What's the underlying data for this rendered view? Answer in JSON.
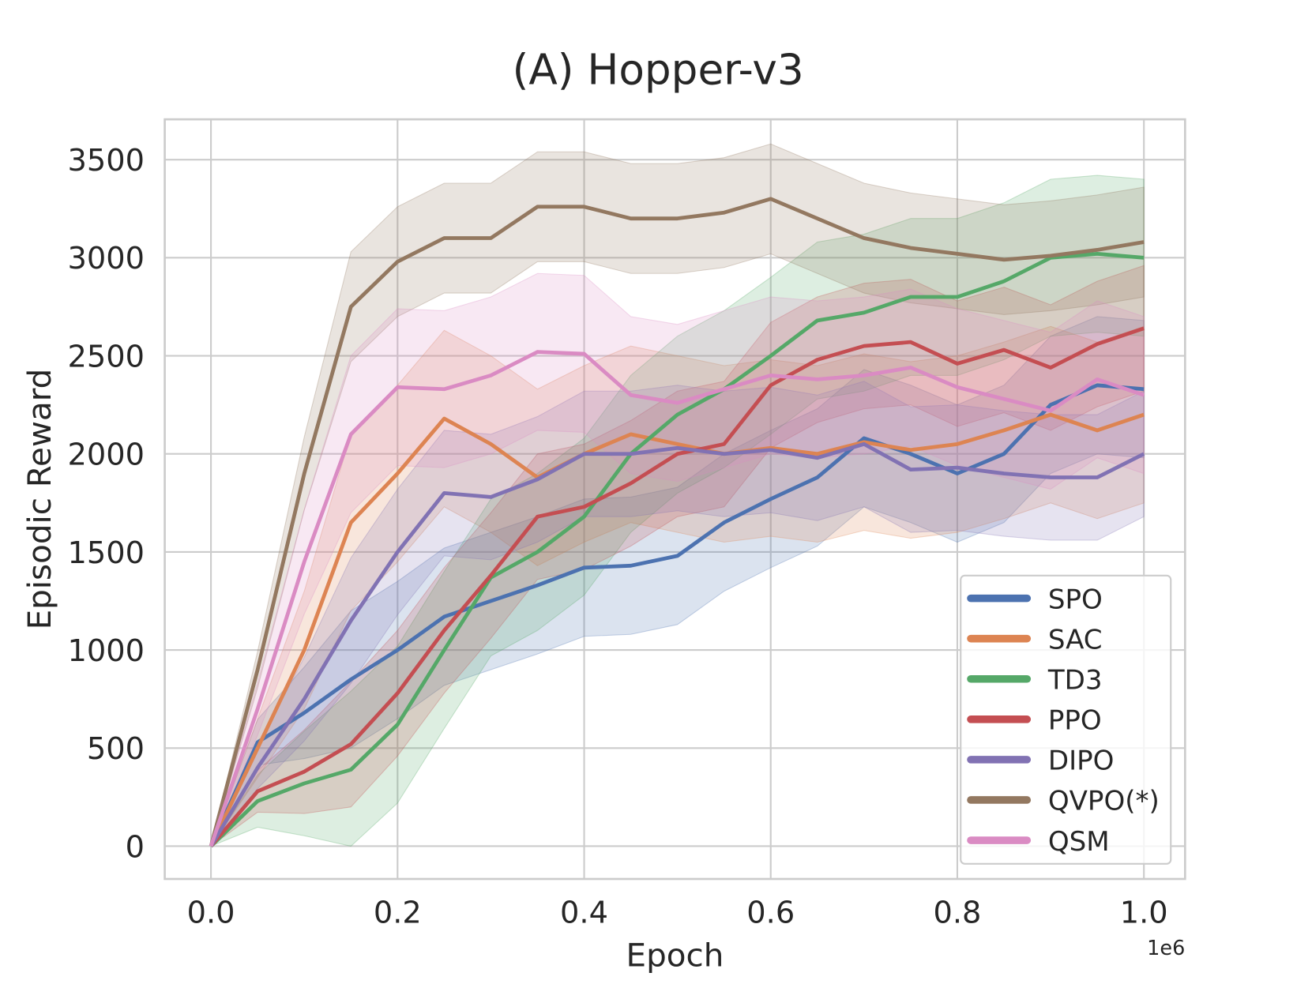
{
  "chart_data": {
    "type": "line",
    "title": "(A) Hopper-v3",
    "xlabel": "Epoch",
    "ylabel": "Episodic Reward",
    "x_scale_label": "1e6",
    "xlim": [
      -0.05,
      1.05
    ],
    "ylim": [
      -150,
      3700
    ],
    "xticks": [
      0.0,
      0.2,
      0.4,
      0.6,
      0.8,
      1.0
    ],
    "xtick_labels": [
      "0.0",
      "0.2",
      "0.4",
      "0.6",
      "0.8",
      "1.0"
    ],
    "yticks": [
      0,
      500,
      1000,
      1500,
      2000,
      2500,
      3000,
      3500
    ],
    "ytick_labels": [
      "0",
      "500",
      "1000",
      "1500",
      "2000",
      "2500",
      "3000",
      "3500"
    ],
    "grid": true,
    "legend_position": "lower-right",
    "x": [
      0,
      0.05,
      0.1,
      0.15,
      0.2,
      0.25,
      0.3,
      0.35,
      0.4,
      0.45,
      0.5,
      0.55,
      0.6,
      0.65,
      0.7,
      0.75,
      0.8,
      0.85,
      0.9,
      0.95,
      1.0
    ],
    "series": [
      {
        "name": "SPO",
        "color": "#4c72b0",
        "band": 350,
        "values": [
          0,
          530,
          680,
          850,
          1000,
          1170,
          1250,
          1330,
          1420,
          1430,
          1480,
          1650,
          1770,
          1880,
          2080,
          2000,
          1900,
          2000,
          2250,
          2350,
          2330
        ]
      },
      {
        "name": "SAC",
        "color": "#dd8452",
        "band": 450,
        "values": [
          0,
          500,
          1000,
          1650,
          1900,
          2180,
          2050,
          1880,
          2000,
          2100,
          2050,
          2000,
          2030,
          2000,
          2060,
          2020,
          2050,
          2120,
          2200,
          2120,
          2200
        ]
      },
      {
        "name": "TD3",
        "color": "#55a868",
        "band": 400,
        "values": [
          0,
          230,
          320,
          390,
          620,
          1000,
          1370,
          1500,
          1680,
          2000,
          2200,
          2330,
          2500,
          2680,
          2720,
          2800,
          2800,
          2880,
          3000,
          3020,
          3000
        ]
      },
      {
        "name": "PPO",
        "color": "#c44e52",
        "band": 320,
        "values": [
          0,
          280,
          380,
          520,
          780,
          1100,
          1380,
          1680,
          1730,
          1850,
          2000,
          2050,
          2350,
          2480,
          2550,
          2570,
          2460,
          2530,
          2440,
          2560,
          2640
        ]
      },
      {
        "name": "DIPO",
        "color": "#8172b3",
        "band": 320,
        "values": [
          0,
          400,
          750,
          1150,
          1500,
          1800,
          1780,
          1870,
          2000,
          2000,
          2030,
          2000,
          2020,
          1980,
          2050,
          1920,
          1930,
          1900,
          1880,
          1880,
          2000
        ]
      },
      {
        "name": "QVPO(*)",
        "color": "#937860",
        "band": 280,
        "values": [
          0,
          900,
          1900,
          2750,
          2980,
          3100,
          3100,
          3260,
          3260,
          3200,
          3200,
          3230,
          3300,
          3200,
          3100,
          3050,
          3020,
          2990,
          3010,
          3040,
          3080
        ]
      },
      {
        "name": "QSM",
        "color": "#da8bc3",
        "band": 400,
        "values": [
          0,
          700,
          1450,
          2100,
          2340,
          2330,
          2400,
          2520,
          2510,
          2300,
          2260,
          2330,
          2400,
          2380,
          2400,
          2440,
          2340,
          2280,
          2220,
          2380,
          2300
        ]
      }
    ]
  }
}
